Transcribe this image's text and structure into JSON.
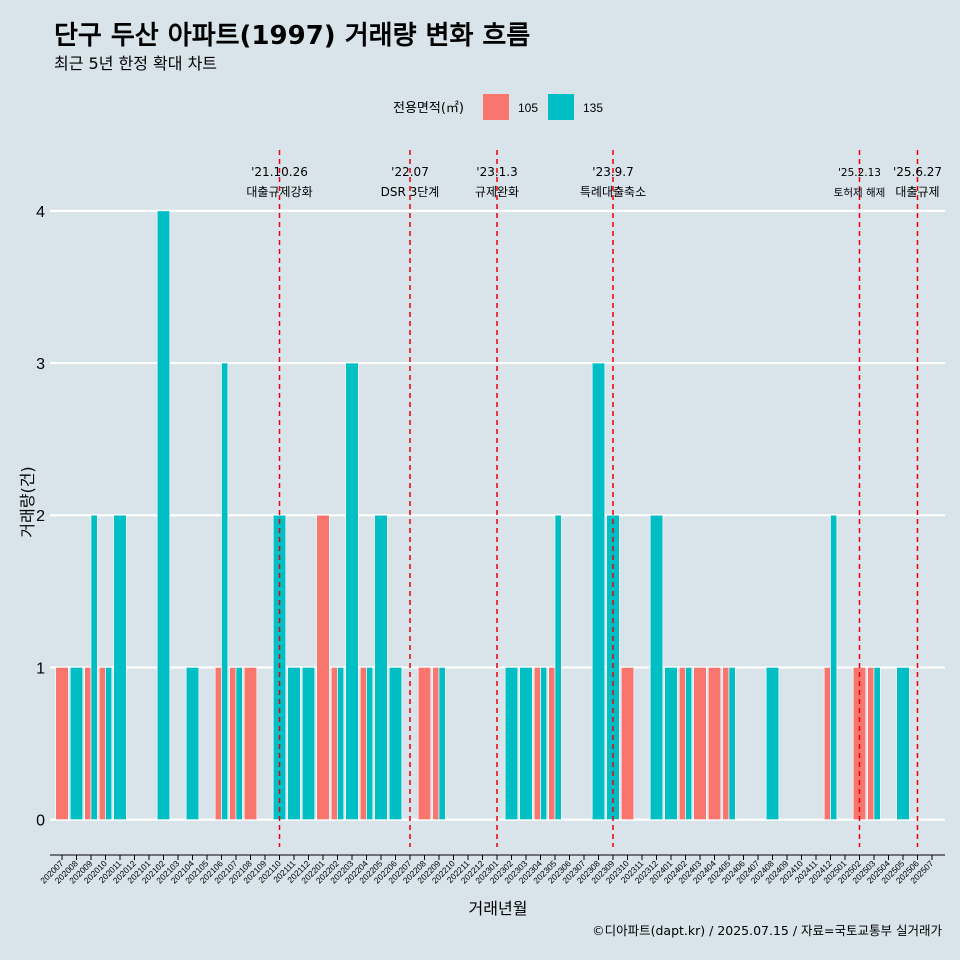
{
  "title": "단구 두산 아파트(1997) 거래량 변화 흐름",
  "subtitle": "최근 5년 한정 확대 차트",
  "caption": "©디아파트(dapt.kr) / 2025.07.15 / 자료=국토교통부 실거래가",
  "colors": {
    "s105": "#F8766D",
    "s135": "#00BFC4",
    "background": "#d8e3ea",
    "event": "#e8000b"
  },
  "chart_data": {
    "type": "bar",
    "xlabel": "거래년월",
    "ylabel": "거래량(건)",
    "ylim": [
      -0.18,
      4.4
    ],
    "yticks": [
      0,
      1,
      2,
      3,
      4
    ],
    "legend_title": "전용면적(㎡)",
    "legend_position": "top",
    "categories": [
      "202007",
      "202008",
      "202009",
      "202010",
      "202011",
      "202012",
      "202101",
      "202102",
      "202103",
      "202104",
      "202105",
      "202106",
      "202107",
      "202108",
      "202109",
      "202110",
      "202111",
      "202112",
      "202201",
      "202202",
      "202203",
      "202204",
      "202205",
      "202206",
      "202207",
      "202208",
      "202209",
      "202210",
      "202211",
      "202212",
      "202301",
      "202302",
      "202303",
      "202304",
      "202305",
      "202306",
      "202307",
      "202308",
      "202309",
      "202310",
      "202311",
      "202312",
      "202401",
      "202402",
      "202403",
      "202404",
      "202405",
      "202406",
      "202407",
      "202408",
      "202409",
      "202410",
      "202411",
      "202412",
      "202501",
      "202502",
      "202503",
      "202504",
      "202505",
      "202506",
      "202507"
    ],
    "series": [
      {
        "name": "105",
        "values": [
          1,
          0,
          1,
          1,
          0,
          0,
          0,
          0,
          0,
          0,
          0,
          1,
          1,
          1,
          0,
          0,
          0,
          0,
          2,
          1,
          0,
          1,
          0,
          0,
          0,
          1,
          1,
          0,
          0,
          0,
          0,
          0,
          0,
          1,
          1,
          0,
          0,
          0,
          0,
          1,
          0,
          0,
          0,
          1,
          1,
          1,
          1,
          0,
          0,
          0,
          0,
          0,
          0,
          1,
          0,
          1,
          1,
          0,
          0,
          0,
          0
        ]
      },
      {
        "name": "135",
        "values": [
          0,
          1,
          2,
          1,
          2,
          0,
          0,
          4,
          0,
          1,
          0,
          3,
          1,
          0,
          0,
          2,
          1,
          1,
          0,
          1,
          3,
          1,
          2,
          1,
          0,
          0,
          1,
          0,
          0,
          0,
          0,
          1,
          1,
          1,
          2,
          0,
          0,
          3,
          2,
          0,
          0,
          2,
          1,
          1,
          0,
          0,
          1,
          0,
          0,
          1,
          0,
          0,
          0,
          2,
          0,
          0,
          1,
          0,
          1,
          0,
          0
        ]
      }
    ],
    "events": [
      {
        "date": "'21.10.26",
        "label": "대출규제강화",
        "month": "202110"
      },
      {
        "date": "'22.07",
        "label": "DSR 3단계",
        "month": "202207"
      },
      {
        "date": "'23.1.3",
        "label": "규제완화",
        "month": "202301"
      },
      {
        "date": "'23.9.7",
        "label": "특례대출축소",
        "month": "202309"
      },
      {
        "date": "'25.2.13",
        "label": "토허제 해제",
        "month": "202502"
      },
      {
        "date": "'25.6.27",
        "label": "대출규제",
        "month": "202506"
      }
    ]
  }
}
